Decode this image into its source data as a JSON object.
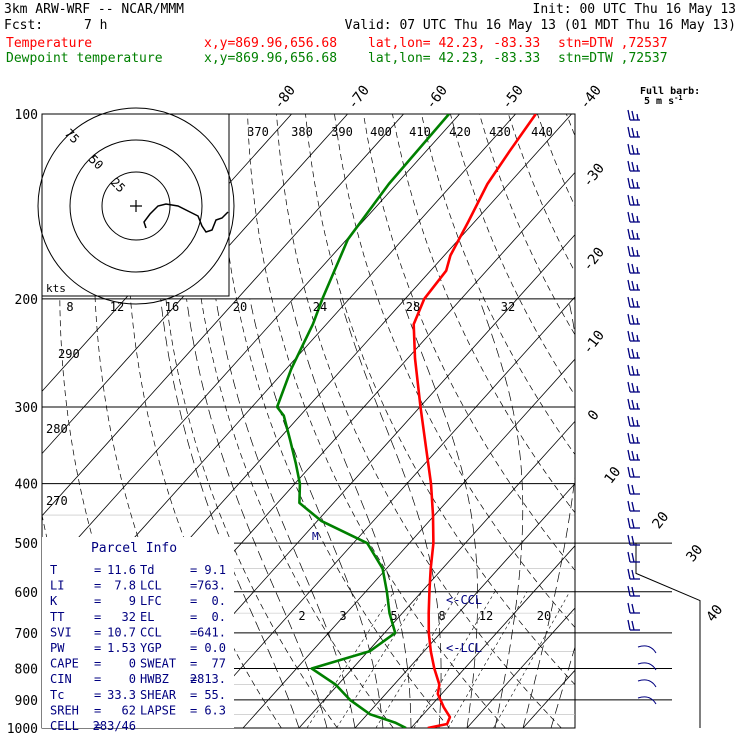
{
  "header": {
    "model": "3km ARW-WRF -- NCAR/MMM",
    "init": "Init: 00 UTC Thu 16 May 13",
    "fcst_label": "Fcst:",
    "fcst_hours": "7 h",
    "valid": "Valid: 07 UTC Thu 16 May 13 (01 MDT Thu 16 May 13)",
    "temp_label": "Temperature",
    "dew_label": "Dewpoint temperature",
    "xy": "x,y=869.96,656.68",
    "latlon": "lat,lon= 42.23, -83.33",
    "stn": "stn=DTW ,72537"
  },
  "barb_legend": {
    "line1": "Full barb:",
    "line2": "5 m s",
    "sup": "-1"
  },
  "colors": {
    "temperature": "#ff0000",
    "dewpoint": "#008000",
    "info": "#000080",
    "grid": "#000000",
    "wind": "#000080"
  },
  "chart_data": {
    "type": "line",
    "chart": "skew-T log-p",
    "pressure_range": [
      1000,
      100
    ],
    "pressure_ticks": [
      100,
      200,
      300,
      400,
      500,
      600,
      700,
      800,
      900,
      1000
    ],
    "isotherm_labels": [
      "-80",
      "-70",
      "-60",
      "-50",
      "-40",
      "-30",
      "-20",
      "-10",
      "0",
      "10",
      "20",
      "30",
      "40"
    ],
    "theta_e_labels": [
      "370",
      "380",
      "390",
      "400",
      "410",
      "420",
      "430",
      "440"
    ],
    "dry_adiabat_labels": [
      "290",
      "280",
      "270"
    ],
    "mixing_ratio_labels": [
      "2",
      "3",
      "5",
      "8",
      "12",
      "20"
    ],
    "series": [
      {
        "name": "Temperature",
        "points": [
          [
            1000,
            13
          ],
          [
            985,
            15.8
          ],
          [
            960,
            15.2
          ],
          [
            925,
            12.5
          ],
          [
            880,
            9.3
          ],
          [
            850,
            8.1
          ],
          [
            800,
            4.6
          ],
          [
            750,
            1.2
          ],
          [
            700,
            -2.1
          ],
          [
            650,
            -5.3
          ],
          [
            600,
            -8.6
          ],
          [
            550,
            -12.1
          ],
          [
            500,
            -15.7
          ],
          [
            450,
            -20.3
          ],
          [
            400,
            -25.7
          ],
          [
            350,
            -32.3
          ],
          [
            300,
            -39.9
          ],
          [
            250,
            -48.7
          ],
          [
            220,
            -54.4
          ],
          [
            200,
            -56.6
          ],
          [
            180,
            -57.2
          ],
          [
            170,
            -58.9
          ],
          [
            150,
            -61.1
          ],
          [
            130,
            -63.8
          ],
          [
            115,
            -65.1
          ],
          [
            100,
            -66.4
          ]
        ]
      },
      {
        "name": "Dewpoint temperature",
        "points": [
          [
            1000,
            9.1
          ],
          [
            980,
            6.3
          ],
          [
            950,
            0.5
          ],
          [
            900,
            -5.4
          ],
          [
            850,
            -10.4
          ],
          [
            800,
            -17.3
          ],
          [
            750,
            -9.7
          ],
          [
            700,
            -8.1
          ],
          [
            650,
            -12.3
          ],
          [
            600,
            -16.2
          ],
          [
            550,
            -20.7
          ],
          [
            500,
            -27.5
          ],
          [
            460,
            -39.3
          ],
          [
            430,
            -46.1
          ],
          [
            400,
            -49.1
          ],
          [
            370,
            -53.2
          ],
          [
            340,
            -57.8
          ],
          [
            310,
            -62.9
          ],
          [
            300,
            -65.5
          ],
          [
            260,
            -69.1
          ],
          [
            220,
            -72.4
          ],
          [
            200,
            -74.8
          ],
          [
            160,
            -79.8
          ],
          [
            130,
            -81.4
          ],
          [
            100,
            -81.9
          ]
        ]
      }
    ],
    "hodograph": {
      "ring_labels": [
        "75",
        "50",
        "25"
      ],
      "axis_label": "kts",
      "speed_ticks": [
        "8",
        "12",
        "16",
        "20",
        "24",
        "28",
        "32"
      ]
    },
    "annotations": [
      "<-CCL",
      "<-LCL",
      "M"
    ]
  },
  "parcel_info": {
    "title": "Parcel Info",
    "rows": [
      {
        "l": "T",
        "lv": "11.6",
        "r": "Td",
        "rv": "9.1"
      },
      {
        "l": "LI",
        "lv": "7.8",
        "r": "LCL",
        "rv": "763."
      },
      {
        "l": "K",
        "lv": "9",
        "r": "LFC",
        "rv": "0."
      },
      {
        "l": "TT",
        "lv": "32",
        "r": "EL",
        "rv": "0."
      },
      {
        "l": "SVI",
        "lv": "10.7",
        "r": "CCL",
        "rv": "641."
      },
      {
        "l": "PW",
        "lv": "1.53",
        "r": "YGP",
        "rv": "0.0"
      },
      {
        "l": "CAPE",
        "lv": "0",
        "r": "SWEAT",
        "rv": "77"
      },
      {
        "l": "CIN",
        "lv": "0",
        "r": "HWBZ",
        "rv": "2813."
      },
      {
        "l": "Tc",
        "lv": "33.3",
        "r": "SHEAR",
        "rv": "55."
      },
      {
        "l": "SREH",
        "lv": "62",
        "r": "LAPSE",
        "rv": "6.3"
      },
      {
        "l": "CELL",
        "lv": "283/46",
        "r": "",
        "rv": ""
      }
    ]
  }
}
